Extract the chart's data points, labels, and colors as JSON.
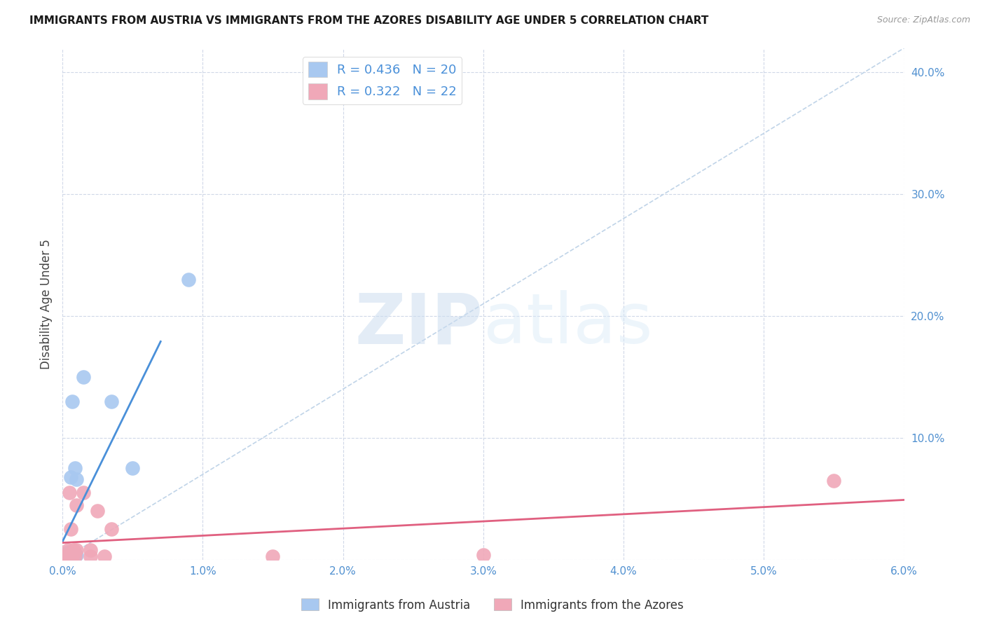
{
  "title": "IMMIGRANTS FROM AUSTRIA VS IMMIGRANTS FROM THE AZORES DISABILITY AGE UNDER 5 CORRELATION CHART",
  "source": "Source: ZipAtlas.com",
  "ylabel_label": "Disability Age Under 5",
  "xlim": [
    0.0,
    0.06
  ],
  "ylim": [
    0.0,
    0.42
  ],
  "xticks": [
    0.0,
    0.01,
    0.02,
    0.03,
    0.04,
    0.05,
    0.06
  ],
  "yticks": [
    0.0,
    0.1,
    0.2,
    0.3,
    0.4
  ],
  "xtick_labels": [
    "0.0%",
    "1.0%",
    "2.0%",
    "3.0%",
    "4.0%",
    "5.0%",
    "6.0%"
  ],
  "ytick_labels": [
    "",
    "10.0%",
    "20.0%",
    "30.0%",
    "40.0%"
  ],
  "austria_color": "#a8c8f0",
  "azores_color": "#f0a8b8",
  "austria_line_color": "#4a90d9",
  "azores_line_color": "#e06080",
  "diagonal_color": "#c0d4e8",
  "legend_R_austria": "R = 0.436",
  "legend_N_austria": "N = 20",
  "legend_R_azores": "R = 0.322",
  "legend_N_azores": "N = 22",
  "legend_label_austria": "Immigrants from Austria",
  "legend_label_azores": "Immigrants from the Azores",
  "austria_x": [
    0.0002,
    0.0002,
    0.0003,
    0.0004,
    0.0004,
    0.0005,
    0.0005,
    0.0006,
    0.0006,
    0.0007,
    0.0007,
    0.0008,
    0.0009,
    0.0009,
    0.001,
    0.001,
    0.0015,
    0.0035,
    0.005,
    0.009
  ],
  "austria_y": [
    0.002,
    0.004,
    0.003,
    0.003,
    0.006,
    0.003,
    0.005,
    0.003,
    0.068,
    0.004,
    0.13,
    0.003,
    0.004,
    0.075,
    0.004,
    0.066,
    0.15,
    0.13,
    0.075,
    0.23
  ],
  "azores_x": [
    0.0002,
    0.0003,
    0.0004,
    0.0004,
    0.0005,
    0.0005,
    0.0006,
    0.0006,
    0.0007,
    0.0008,
    0.0009,
    0.001,
    0.001,
    0.0015,
    0.002,
    0.002,
    0.0025,
    0.003,
    0.0035,
    0.015,
    0.03,
    0.055
  ],
  "azores_y": [
    0.003,
    0.004,
    0.003,
    0.008,
    0.003,
    0.055,
    0.003,
    0.025,
    0.003,
    0.008,
    0.003,
    0.008,
    0.045,
    0.055,
    0.003,
    0.008,
    0.04,
    0.003,
    0.025,
    0.003,
    0.004,
    0.065
  ],
  "watermark_zip": "ZIP",
  "watermark_atlas": "atlas",
  "background_color": "#ffffff",
  "tick_color": "#5090d0",
  "grid_color": "#d0d8e8"
}
